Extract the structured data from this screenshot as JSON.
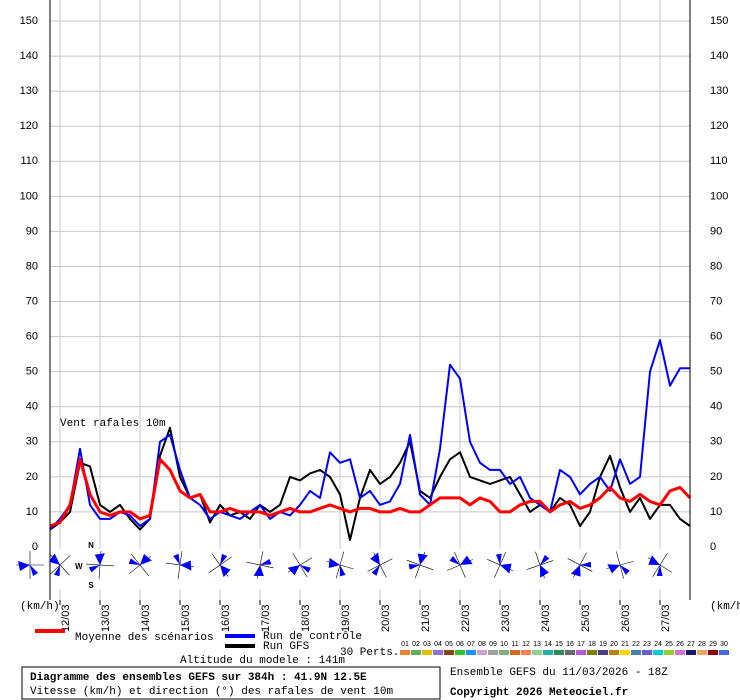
{
  "chart_data": {
    "type": "line",
    "annotation": "Vent rafales 10m",
    "y_unit_left": "(km/h)",
    "y_unit_right": "(km/h)",
    "categories": [
      null,
      "12/03",
      null,
      null,
      null,
      "13/03",
      null,
      null,
      null,
      "14/03",
      null,
      null,
      null,
      "15/03",
      null,
      null,
      null,
      "16/03",
      null,
      null,
      null,
      "17/03",
      null,
      null,
      null,
      "18/03",
      null,
      null,
      null,
      "19/03",
      null,
      null,
      null,
      "20/03",
      null,
      null,
      null,
      "21/03",
      null,
      null,
      null,
      "22/03",
      null,
      null,
      null,
      "23/03",
      null,
      null,
      null,
      "24/03",
      null,
      null,
      null,
      "25/03",
      null,
      null,
      null,
      "26/03",
      null,
      null,
      null,
      "27/03",
      null,
      null,
      null
    ],
    "ylim": [
      0,
      156
    ],
    "yticks": [
      0,
      10,
      20,
      30,
      40,
      50,
      60,
      70,
      80,
      90,
      100,
      110,
      120,
      130,
      140,
      150
    ],
    "grid": true,
    "series": [
      {
        "name": "Moyenne des scénarios",
        "color": "#ff0000",
        "width": 3,
        "values": [
          6,
          7,
          12,
          25,
          15,
          10,
          9,
          10,
          10,
          8,
          9,
          25,
          22,
          16,
          14,
          15,
          10,
          10,
          11,
          10,
          10,
          10,
          9,
          10,
          11,
          10,
          10,
          11,
          12,
          11,
          10,
          11,
          11,
          10,
          10,
          11,
          10,
          10,
          12,
          14,
          14,
          14,
          12,
          14,
          13,
          10,
          10,
          12,
          13,
          13,
          10,
          12,
          13,
          11,
          12,
          14,
          17,
          14,
          13,
          15,
          13,
          12,
          16,
          17,
          14
        ]
      },
      {
        "name": "Run de contrôle",
        "color": "#0000ff",
        "width": 2,
        "values": [
          5,
          8,
          12,
          28,
          12,
          8,
          8,
          10,
          9,
          6,
          8,
          30,
          32,
          22,
          14,
          12,
          8,
          10,
          9,
          8,
          10,
          12,
          8,
          10,
          9,
          12,
          16,
          14,
          27,
          24,
          25,
          14,
          16,
          12,
          13,
          18,
          32,
          15,
          12,
          28,
          52,
          48,
          30,
          24,
          22,
          22,
          18,
          20,
          14,
          12,
          10,
          22,
          20,
          15,
          18,
          20,
          16,
          25,
          18,
          20,
          50,
          59,
          46,
          51,
          51
        ]
      },
      {
        "name": "Run GFS",
        "color": "#000000",
        "width": 2,
        "values": [
          5,
          7,
          10,
          24,
          23,
          12,
          10,
          12,
          8,
          5,
          8,
          26,
          34,
          20,
          14,
          15,
          7,
          12,
          9,
          10,
          8,
          12,
          10,
          12,
          20,
          19,
          21,
          22,
          20,
          15,
          2,
          14,
          22,
          18,
          20,
          24,
          30,
          16,
          14,
          20,
          25,
          27,
          20,
          19,
          18,
          19,
          20,
          15,
          10,
          12,
          10,
          14,
          12,
          6,
          10,
          20,
          26,
          17,
          10,
          14,
          8,
          12,
          12,
          8,
          6
        ]
      }
    ],
    "perturbations_title": "30 Perts.",
    "perturbation_legend": [
      {
        "label": "01",
        "color": "#f08030"
      },
      {
        "label": "02",
        "color": "#60b060"
      },
      {
        "label": "03",
        "color": "#e0c000"
      },
      {
        "label": "04",
        "color": "#9070d0"
      },
      {
        "label": "05",
        "color": "#8b4513"
      },
      {
        "label": "06",
        "color": "#30c030"
      },
      {
        "label": "07",
        "color": "#1e90ff"
      },
      {
        "label": "08",
        "color": "#d0a0d0"
      },
      {
        "label": "09",
        "color": "#a0a0a0"
      },
      {
        "label": "10",
        "color": "#80b080"
      },
      {
        "label": "11",
        "color": "#d2691e"
      },
      {
        "label": "12",
        "color": "#ff7f50"
      },
      {
        "label": "13",
        "color": "#90d090"
      },
      {
        "label": "14",
        "color": "#20b2aa"
      },
      {
        "label": "15",
        "color": "#2e8b57"
      },
      {
        "label": "16",
        "color": "#696969"
      },
      {
        "label": "17",
        "color": "#ba55d3"
      },
      {
        "label": "18",
        "color": "#808000"
      },
      {
        "label": "19",
        "color": "#483d8b"
      },
      {
        "label": "20",
        "color": "#b8860b"
      },
      {
        "label": "21",
        "color": "#ffd700"
      },
      {
        "label": "22",
        "color": "#4682b4"
      },
      {
        "label": "23",
        "color": "#6a5acd"
      },
      {
        "label": "24",
        "color": "#00ced1"
      },
      {
        "label": "25",
        "color": "#9acd32"
      },
      {
        "label": "26",
        "color": "#da70d6"
      },
      {
        "label": "27",
        "color": "#191970"
      },
      {
        "label": "28",
        "color": "#f4a460"
      },
      {
        "label": "29",
        "color": "#8b0000"
      },
      {
        "label": "30",
        "color": "#4169e1"
      }
    ],
    "wind_rose_labels": {
      "n": "N",
      "w": "W",
      "s": "S"
    },
    "altitude": "Altitude du modele : 141m",
    "footer_title": "Diagramme des ensembles GEFS sur 384h : 41.9N 12.5E",
    "footer_subtitle": "Vitesse (km/h) et direction (°) des rafales de vent 10m",
    "run_info": "Ensemble GEFS du 11/03/2026 - 18Z",
    "copyright": "Copyright 2026 Meteociel.fr"
  }
}
